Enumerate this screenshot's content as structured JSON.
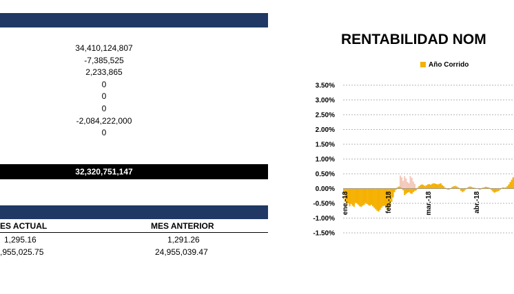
{
  "summary": {
    "values": [
      "34,410,124,807",
      "-7,385,525",
      "2,233,865",
      "0",
      "0",
      "0",
      "-2,084,222,000",
      "0"
    ],
    "total": "32,320,751,147"
  },
  "unit_table": {
    "col_current": "ES ACTUAL",
    "col_previous": "MES ANTERIOR",
    "rows": [
      {
        "current": "1,295.16",
        "previous": "1,291.26"
      },
      {
        "current": ",955,025.75",
        "previous": "24,955,039.47"
      }
    ]
  },
  "colors": {
    "navy": "#1f3864",
    "series": "#f5b000",
    "faded": "#f2c9bb"
  },
  "chart_data": {
    "type": "area",
    "title": "RENTABILIDAD NOM",
    "legend": "Año Corrido",
    "legend_position": "top",
    "ylim": [
      -0.015,
      0.035
    ],
    "y_ticks": [
      "3.50%",
      "3.00%",
      "2.50%",
      "2.00%",
      "1.50%",
      "1.00%",
      "0.50%",
      "0.00%",
      "-0.50%",
      "-1.00%",
      "-1.50%"
    ],
    "x_ticks": [
      "ene.-18",
      "feb.-18",
      "mar.-18",
      "abr.-18"
    ],
    "grid": true,
    "series": [
      {
        "name": "Año Corrido",
        "x": [
          1,
          2,
          3,
          4,
          5,
          6,
          7,
          8,
          9,
          10,
          11,
          12,
          13,
          14,
          15,
          16,
          17,
          18,
          19,
          20,
          21,
          22,
          23,
          24,
          25,
          26,
          27,
          28,
          29,
          30,
          31,
          32,
          33,
          34,
          35,
          36,
          37,
          38,
          39,
          40,
          41,
          42,
          43,
          44,
          45,
          46,
          47,
          48,
          49,
          50,
          51,
          52,
          53,
          54,
          55,
          56,
          57,
          58,
          59,
          60,
          61,
          62,
          63,
          64,
          65,
          66,
          67,
          68,
          69,
          70,
          71,
          72,
          73,
          74,
          75,
          76,
          77,
          78,
          79,
          80,
          81,
          82,
          83,
          84,
          85,
          86,
          87,
          88,
          89,
          90,
          91,
          92,
          93,
          94,
          95,
          96,
          97,
          98,
          99,
          100,
          101,
          102,
          103,
          104,
          105,
          106,
          107,
          108,
          109,
          110,
          111,
          112,
          113,
          114,
          115,
          116,
          117,
          118,
          119,
          120
        ],
        "values": [
          -0.0015,
          -0.0045,
          -0.0055,
          -0.005,
          -0.006,
          -0.0052,
          -0.0058,
          -0.0062,
          -0.0048,
          -0.005,
          -0.0055,
          -0.006,
          -0.0062,
          -0.0058,
          -0.0055,
          -0.0048,
          -0.0052,
          -0.0056,
          -0.0058,
          -0.0055,
          -0.006,
          -0.0065,
          -0.007,
          -0.0075,
          -0.0078,
          -0.0072,
          -0.0065,
          -0.006,
          -0.0058,
          -0.0066,
          -0.0072,
          -0.0068,
          -0.006,
          -0.0045,
          -0.003,
          -0.0012,
          -0.0004,
          0.0004,
          0.0007,
          0.0005,
          0.0002,
          -0.0006,
          -0.0022,
          -0.0018,
          -0.0014,
          -0.0012,
          -0.0016,
          -0.0018,
          -0.0012,
          -0.0008,
          -0.0006,
          0.0003,
          0.0008,
          0.0012,
          0.0014,
          0.0012,
          0.0009,
          0.0011,
          0.0014,
          0.0015,
          0.0013,
          0.0016,
          0.0018,
          0.0017,
          0.0015,
          0.0014,
          0.0016,
          0.0018,
          0.0012,
          0.0008,
          0.0003,
          -0.0002,
          -0.0004,
          -0.0003,
          0.0002,
          0.0006,
          0.0008,
          0.0009,
          0.0007,
          0.0004,
          -0.0002,
          -0.0008,
          -0.0012,
          -0.0009,
          -0.0004,
          0.0002,
          0.0005,
          0.0007,
          0.0006,
          0.0004,
          0.0003,
          0.0002,
          0.0001,
          -0.0002,
          -0.0004,
          -0.0002,
          0.0003,
          0.0004,
          0.0006,
          0.0005,
          0.0004,
          0.0002,
          -0.0005,
          -0.001,
          -0.0014,
          -0.0012,
          -0.001,
          -0.0008,
          -0.0004,
          0.0002,
          0.0004,
          0.0003,
          0.0004,
          0.0008,
          0.0014,
          0.0022,
          0.003,
          0.0038,
          0.0045,
          0.0048
        ],
        "faded_x": [
          40,
          41,
          42,
          43,
          44,
          45,
          46,
          47,
          48,
          49,
          50
        ],
        "faded_values": [
          0.0044,
          0.0038,
          0.0026,
          0.0042,
          0.0034,
          0.0022,
          0.0018,
          0.0042,
          0.0036,
          0.0024,
          0.0016
        ]
      }
    ]
  }
}
